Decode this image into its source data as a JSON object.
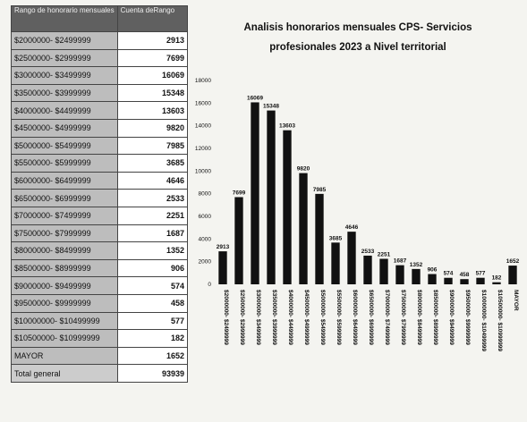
{
  "table": {
    "header_range": "Rango de honorario mensuales",
    "header_count": "Cuenta deRango",
    "rows": [
      {
        "range": "$2000000- $2499999",
        "count": "2913"
      },
      {
        "range": "$2500000- $2999999",
        "count": "7699"
      },
      {
        "range": "$3000000- $3499999",
        "count": "16069"
      },
      {
        "range": "$3500000- $3999999",
        "count": "15348"
      },
      {
        "range": "$4000000- $4499999",
        "count": "13603"
      },
      {
        "range": "$4500000- $4999999",
        "count": "9820"
      },
      {
        "range": "$5000000- $5499999",
        "count": "7985"
      },
      {
        "range": "$5500000- $5999999",
        "count": "3685"
      },
      {
        "range": "$6000000- $6499999",
        "count": "4646"
      },
      {
        "range": "$6500000- $6999999",
        "count": "2533"
      },
      {
        "range": "$7000000- $7499999",
        "count": "2251"
      },
      {
        "range": "$7500000- $7999999",
        "count": "1687"
      },
      {
        "range": "$8000000- $8499999",
        "count": "1352"
      },
      {
        "range": "$8500000- $8999999",
        "count": "906"
      },
      {
        "range": "$9000000- $9499999",
        "count": "574"
      },
      {
        "range": "$9500000- $9999999",
        "count": "458"
      },
      {
        "range": "$10000000- $10499999",
        "count": "577"
      },
      {
        "range": "$10500000- $10999999",
        "count": "182"
      },
      {
        "range": "MAYOR",
        "count": "1652"
      }
    ],
    "total_label": "Total general",
    "total_value": "93939"
  },
  "chart_data": {
    "type": "bar",
    "title_line1": "Analisis honorarios mensuales CPS- Servicios",
    "title_line2": "profesionales 2023 a Nivel territorial",
    "categories": [
      "$2000000- $2499999",
      "$2500000- $2999999",
      "$3000000- $3499999",
      "$3500000- $3999999",
      "$4000000- $4499999",
      "$4500000- $4999999",
      "$5000000- $5499999",
      "$5500000- $5999999",
      "$6000000- $6499999",
      "$6500000- $6999999",
      "$7000000- $7499999",
      "$7500000- $7999999",
      "$8000000- $8499999",
      "$8500000- $8999999",
      "$9000000- $9499999",
      "$9500000- $9999999",
      "$10000000- $10499999",
      "$10500000- $10999999",
      "MAYOR"
    ],
    "values": [
      2913,
      7699,
      16069,
      15348,
      13603,
      9820,
      7985,
      3685,
      4646,
      2533,
      2251,
      1687,
      1352,
      906,
      574,
      458,
      577,
      182,
      1652
    ],
    "yticks": [
      0,
      2000,
      4000,
      6000,
      8000,
      10000,
      12000,
      14000,
      16000,
      18000
    ],
    "ylim": [
      0,
      18000
    ],
    "bar_color": "#111111"
  }
}
